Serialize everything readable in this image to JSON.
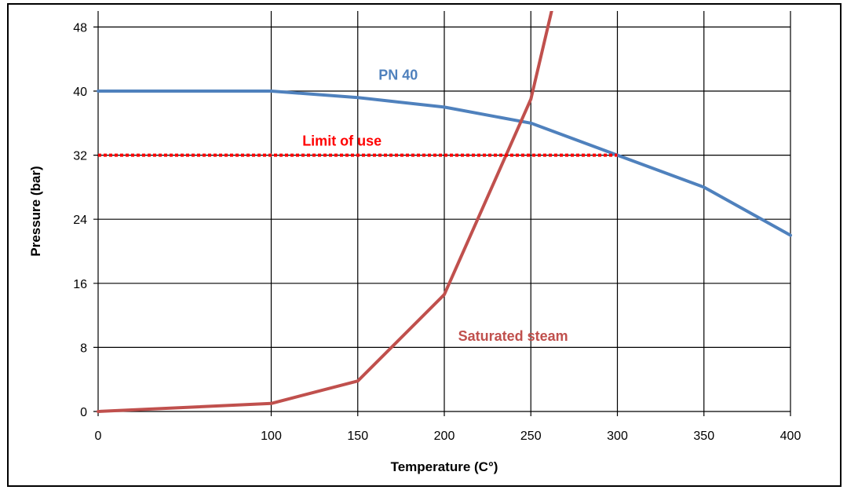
{
  "chart_data": {
    "type": "line",
    "xlabel": "Temperature (C°)",
    "ylabel": "Pressure (bar)",
    "xlim": [
      0,
      400
    ],
    "ylim": [
      0,
      50
    ],
    "x_ticks": [
      0,
      100,
      150,
      200,
      250,
      300,
      350,
      400
    ],
    "y_ticks": [
      0,
      8,
      16,
      24,
      32,
      40,
      48
    ],
    "grid": true,
    "legend": "none",
    "series": [
      {
        "name": "PN 40",
        "color": "#4F81BD",
        "style": "solid",
        "points": [
          [
            0,
            40
          ],
          [
            100,
            40
          ],
          [
            150,
            39.2
          ],
          [
            200,
            38
          ],
          [
            250,
            36
          ],
          [
            300,
            32
          ],
          [
            350,
            28
          ],
          [
            400,
            22
          ]
        ]
      },
      {
        "name": "Saturated steam",
        "color": "#C0504D",
        "style": "solid",
        "points": [
          [
            0,
            0
          ],
          [
            100,
            1
          ],
          [
            150,
            3.8
          ],
          [
            200,
            14.6
          ],
          [
            250,
            39
          ],
          [
            262,
            50
          ]
        ]
      },
      {
        "name": "Limit of use",
        "color": "#FF0000",
        "style": "dotted",
        "points": [
          [
            0,
            32
          ],
          [
            300,
            32
          ]
        ]
      }
    ],
    "annotations": [
      {
        "text": "PN 40",
        "color": "#4F81BD"
      },
      {
        "text": "Limit of use",
        "color": "#FF0000"
      },
      {
        "text": "Saturated steam",
        "color": "#C0504D"
      }
    ]
  }
}
